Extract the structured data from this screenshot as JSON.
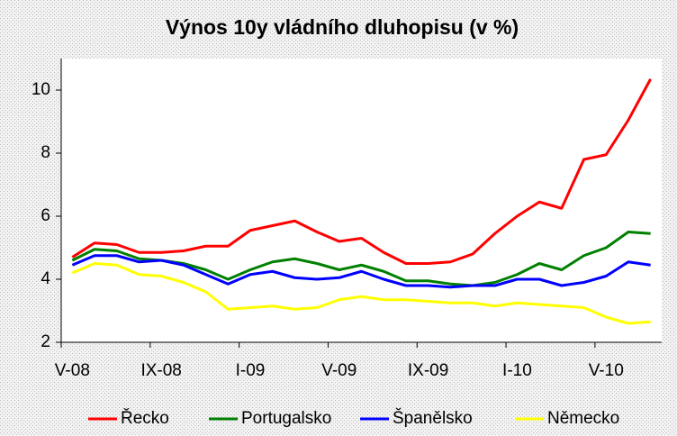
{
  "chart_data": {
    "type": "line",
    "title": "Výnos 10y vládního dluhopisu (v %)",
    "categories": [
      "V-08",
      null,
      null,
      null,
      "IX-08",
      null,
      null,
      null,
      "I-09",
      null,
      null,
      null,
      "V-09",
      null,
      null,
      null,
      "IX-09",
      null,
      null,
      null,
      "I-10",
      null,
      null,
      null,
      "V-10",
      null,
      null
    ],
    "series": [
      {
        "name": "Řecko",
        "color": "#ff0000",
        "values": [
          4.7,
          5.15,
          5.1,
          4.85,
          4.85,
          4.9,
          5.05,
          5.05,
          5.55,
          5.7,
          5.85,
          5.5,
          5.2,
          5.3,
          4.85,
          4.5,
          4.5,
          4.55,
          4.8,
          5.45,
          6.0,
          6.45,
          6.25,
          7.8,
          7.95,
          9.05,
          10.35
        ]
      },
      {
        "name": "Portugalsko",
        "color": "#008000",
        "values": [
          4.6,
          4.95,
          4.9,
          4.65,
          4.6,
          4.5,
          4.3,
          4.0,
          4.3,
          4.55,
          4.65,
          4.5,
          4.3,
          4.45,
          4.25,
          3.95,
          3.95,
          3.85,
          3.8,
          3.9,
          4.15,
          4.5,
          4.3,
          4.75,
          5.0,
          5.5,
          5.45
        ]
      },
      {
        "name": "Španělsko",
        "color": "#0000ff",
        "values": [
          4.45,
          4.75,
          4.75,
          4.55,
          4.6,
          4.45,
          4.15,
          3.85,
          4.15,
          4.25,
          4.05,
          4.0,
          4.05,
          4.25,
          4.0,
          3.8,
          3.8,
          3.75,
          3.8,
          3.8,
          4.0,
          4.0,
          3.8,
          3.9,
          4.1,
          4.55,
          4.45
        ]
      },
      {
        "name": "Německo",
        "color": "#ffff00",
        "values": [
          4.2,
          4.5,
          4.45,
          4.15,
          4.1,
          3.9,
          3.6,
          3.05,
          3.1,
          3.15,
          3.05,
          3.1,
          3.35,
          3.45,
          3.35,
          3.35,
          3.3,
          3.25,
          3.25,
          3.15,
          3.25,
          3.2,
          3.15,
          3.1,
          2.8,
          2.6,
          2.65
        ]
      }
    ],
    "ylim": [
      2,
      11
    ],
    "yticks": [
      2,
      4,
      6,
      8,
      10
    ],
    "grid": false,
    "legend": "bottom"
  }
}
